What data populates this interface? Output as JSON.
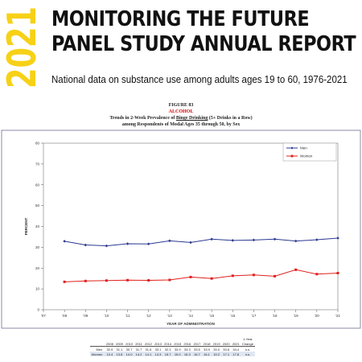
{
  "header": {
    "year": "2021",
    "title_line1": "MONITORING THE FUTURE",
    "title_line2": "PANEL STUDY ANNUAL REPORT",
    "subtitle": "National data on substance use among adults ages 19 to 60, 1976-2021"
  },
  "colors": {
    "accent_yellow": "#f7d117",
    "men": "#2b3990",
    "women": "#e0201e"
  },
  "figure": {
    "number": "FIGURE 83",
    "substance": "ALCOHOL",
    "caption_pre": "Trends in 2-Week Prevalence of ",
    "caption_link": "Binge Drinking",
    "caption_post": " (5+ Drinks in a Row)",
    "caption_line2": "among Respondents of Modal Ages 35 through 50, by Sex"
  },
  "chart_data": {
    "type": "line",
    "x": [
      "'07",
      "'08",
      "'09",
      "'10",
      "'11",
      "'12",
      "'13",
      "'14",
      "'15",
      "'16",
      "'17",
      "'18",
      "'19",
      "'20",
      "'21"
    ],
    "xlabel": "YEAR OF ADMINISTRATION",
    "ylabel": "PERCENT",
    "ylim": [
      0,
      80
    ],
    "yticks": [
      0,
      10,
      20,
      30,
      40,
      50,
      60,
      70,
      80
    ],
    "grid": false,
    "legend": "top-right",
    "series": [
      {
        "name": "Men",
        "color": "#2b3990",
        "values": [
          null,
          32.9,
          31.1,
          30.7,
          31.7,
          31.6,
          33.1,
          32.3,
          33.9,
          33.3,
          33.5,
          33.9,
          33.0,
          33.6,
          34.4
        ]
      },
      {
        "name": "Women",
        "color": "#e0201e",
        "values": [
          null,
          13.4,
          13.8,
          14.0,
          14.2,
          14.1,
          14.3,
          15.7,
          15.0,
          16.3,
          16.7,
          16.1,
          19.2,
          17.1,
          17.6
        ]
      }
    ]
  },
  "table": {
    "change_header_line1": "1-Year",
    "change_header_line2": "Change",
    "years": [
      "2008",
      "2009",
      "2010",
      "2011",
      "2012",
      "2013",
      "2014",
      "2015",
      "2016",
      "2017",
      "2018",
      "2019",
      "2020",
      "2021"
    ],
    "rows": [
      {
        "label": "Men",
        "values": [
          "32.9",
          "31.1",
          "30.7",
          "31.7",
          "31.6",
          "33.1",
          "32.3",
          "33.9",
          "33.3",
          "33.5",
          "33.9",
          "33.0",
          "33.6",
          "34.4"
        ],
        "change": "n.s."
      },
      {
        "label": "Women",
        "values": [
          "13.4",
          "13.8",
          "14.0",
          "14.2",
          "14.1",
          "14.3",
          "15.7",
          "15.0",
          "16.3",
          "16.7",
          "16.1",
          "19.2",
          "17.1",
          "17.6"
        ],
        "change": "n.s."
      }
    ]
  }
}
